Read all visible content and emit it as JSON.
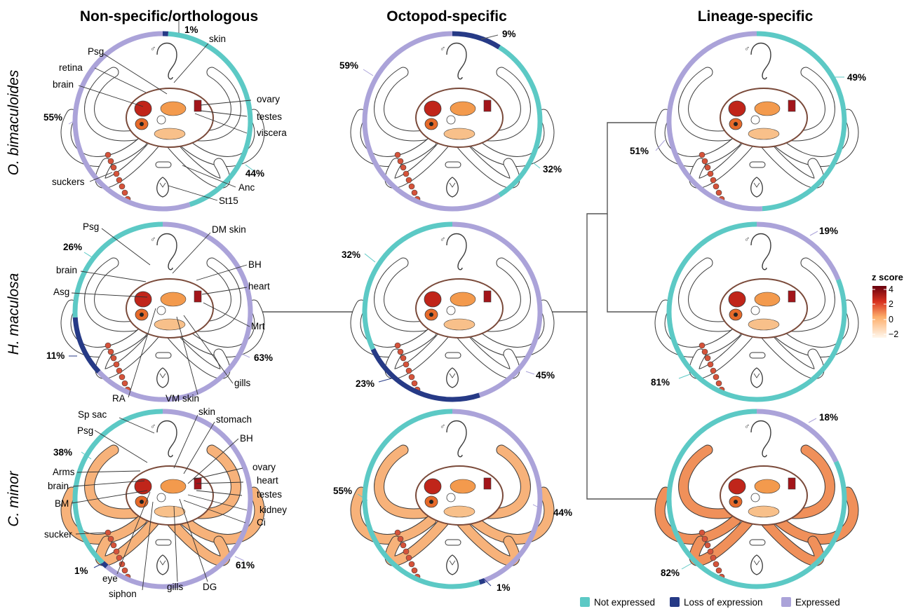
{
  "columns": [
    "Non-specific/orthologous",
    "Octopod-specific",
    "Lineage-specific"
  ],
  "rows": [
    "O. bimaculoides",
    "H. maculosa",
    "C. minor"
  ],
  "colors": {
    "not_expressed": "#5cc9c5",
    "loss_of_expression": "#263a86",
    "expressed": "#aba3d9",
    "tree": "#555555"
  },
  "legend": [
    {
      "key": "not_expressed",
      "label": "Not expressed"
    },
    {
      "key": "loss_of_expression",
      "label": "Loss of expression"
    },
    {
      "key": "expressed",
      "label": "Expressed"
    }
  ],
  "zscore": {
    "title": "z score",
    "ticks": [
      "4",
      "2",
      "0",
      "−2"
    ]
  },
  "sex_symbol": "♂",
  "panels": [
    {
      "id": "obim-non",
      "segments": [
        {
          "cat": "loss_of_expression",
          "value": 1
        },
        {
          "cat": "not_expressed",
          "value": 44
        },
        {
          "cat": "expressed",
          "value": 55
        }
      ],
      "pcts": [
        "1%",
        "44%",
        "55%"
      ],
      "labels": [
        "Psg",
        "retina",
        "brain",
        "skin",
        "ovary",
        "testes",
        "viscera",
        "suckers",
        "Anc",
        "St15"
      ],
      "tint": "#ffffff"
    },
    {
      "id": "obim-oct",
      "segments": [
        {
          "cat": "loss_of_expression",
          "value": 9
        },
        {
          "cat": "not_expressed",
          "value": 32
        },
        {
          "cat": "expressed",
          "value": 59
        }
      ],
      "pcts": [
        "9%",
        "32%",
        "59%"
      ],
      "labels": [],
      "tint": "#ffffff"
    },
    {
      "id": "obim-lin",
      "segments": [
        {
          "cat": "not_expressed",
          "value": 49
        },
        {
          "cat": "expressed",
          "value": 51
        }
      ],
      "pcts": [
        "49%",
        "51%"
      ],
      "labels": [],
      "tint": "#ffffff"
    },
    {
      "id": "hmac-non",
      "segments": [
        {
          "cat": "expressed",
          "value": 63
        },
        {
          "cat": "loss_of_expression",
          "value": 11
        },
        {
          "cat": "not_expressed",
          "value": 26
        }
      ],
      "pcts": [
        "26%",
        "11%",
        "63%"
      ],
      "labels": [
        "Psg",
        "DM skin",
        "BH",
        "brain",
        "heart",
        "Asg",
        "Mrt",
        "gills",
        "RA",
        "VM skin"
      ],
      "tint": "#ffffff"
    },
    {
      "id": "hmac-oct",
      "segments": [
        {
          "cat": "expressed",
          "value": 45
        },
        {
          "cat": "loss_of_expression",
          "value": 23
        },
        {
          "cat": "not_expressed",
          "value": 32
        }
      ],
      "pcts": [
        "32%",
        "23%",
        "45%"
      ],
      "labels": [],
      "tint": "#ffffff"
    },
    {
      "id": "hmac-lin",
      "segments": [
        {
          "cat": "expressed",
          "value": 19
        },
        {
          "cat": "not_expressed",
          "value": 81
        }
      ],
      "pcts": [
        "19%",
        "81%"
      ],
      "labels": [],
      "tint": "#ffffff"
    },
    {
      "id": "cmin-non",
      "segments": [
        {
          "cat": "expressed",
          "value": 61
        },
        {
          "cat": "loss_of_expression",
          "value": 1
        },
        {
          "cat": "not_expressed",
          "value": 38
        }
      ],
      "pcts": [
        "38%",
        "1%",
        "61%"
      ],
      "labels": [
        "Sp sac",
        "skin",
        "stomach",
        "Psg",
        "BH",
        "ovary",
        "Arms",
        "heart",
        "brain",
        "testes",
        "BM",
        "kidney",
        "Ci",
        "sucker",
        "eye",
        "siphon",
        "gills",
        "DG"
      ],
      "tint": "#f7b27a"
    },
    {
      "id": "cmin-oct",
      "segments": [
        {
          "cat": "expressed",
          "value": 44
        },
        {
          "cat": "loss_of_expression",
          "value": 1
        },
        {
          "cat": "not_expressed",
          "value": 55
        }
      ],
      "pcts": [
        "1%",
        "55%",
        "44%"
      ],
      "labels": [],
      "tint": "#f7b27a"
    },
    {
      "id": "cmin-lin",
      "segments": [
        {
          "cat": "expressed",
          "value": 18
        },
        {
          "cat": "not_expressed",
          "value": 82
        }
      ],
      "pcts": [
        "18%",
        "82%"
      ],
      "labels": [],
      "tint": "#f0905a"
    }
  ]
}
